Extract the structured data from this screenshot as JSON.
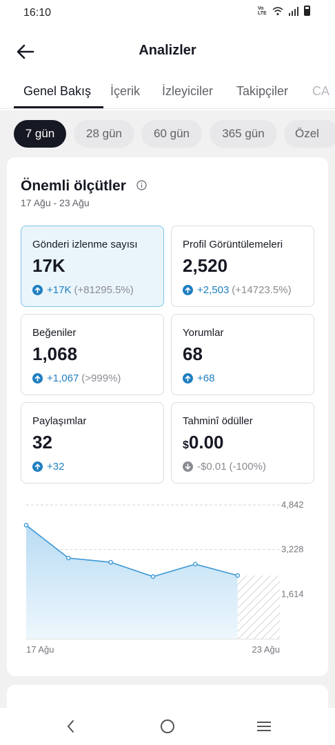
{
  "status": {
    "time": "16:10",
    "volte_label": "Vo LTE"
  },
  "header": {
    "title": "Analizler"
  },
  "tabs": [
    {
      "label": "Genel Bakış"
    },
    {
      "label": "İçerik"
    },
    {
      "label": "İzleyiciler"
    },
    {
      "label": "Takipçiler"
    },
    {
      "label": "CA"
    }
  ],
  "ranges": [
    {
      "label": "7 gün"
    },
    {
      "label": "28 gün"
    },
    {
      "label": "60 gün"
    },
    {
      "label": "365 gün"
    },
    {
      "label": "Özel"
    }
  ],
  "metrics_section": {
    "title": "Önemli ölçütler",
    "date_range": "17 Ağu - 23 Ağu",
    "metrics": [
      {
        "label": "Gönderi izlenme sayısı",
        "value": "17K",
        "change": "+17K",
        "change_pct": "(+81295.5%)"
      },
      {
        "label": "Profil Görüntülemeleri",
        "value": "2,520",
        "change": "+2,503",
        "change_pct": "(+14723.5%)"
      },
      {
        "label": "Beğeniler",
        "value": "1,068",
        "change": "+1,067",
        "change_pct": "(>999%)"
      },
      {
        "label": "Yorumlar",
        "value": "68",
        "change": "+68",
        "change_pct": ""
      },
      {
        "label": "Paylaşımlar",
        "value": "32",
        "change": "+32",
        "change_pct": ""
      },
      {
        "label": "Tahminî ödüller",
        "currency": "$",
        "value": "0.00",
        "change": "-$0.01",
        "change_pct": "(-100%)"
      }
    ]
  },
  "colors": {
    "accent": "#1f7ec1",
    "line": "#3a97d4",
    "area": "#cfe7f7",
    "neutral": "#8a8b91"
  },
  "chart_data": {
    "type": "line",
    "x": [
      "17 Ağu",
      "18 Ağu",
      "19 Ağu",
      "20 Ağu",
      "21 Ağu",
      "22 Ağu",
      "23 Ağu"
    ],
    "series": [
      {
        "values": [
          4110,
          2920,
          2770,
          2250,
          2700,
          2290,
          null
        ]
      }
    ],
    "ylim": [
      0,
      4842
    ],
    "yticks": [
      "4,842",
      "3,228",
      "1,614"
    ],
    "ytick_values": [
      4842,
      3228,
      1614
    ],
    "xtick_labels": [
      "17 Ağu",
      "23 Ağu"
    ],
    "grid": true,
    "incomplete_last_period": true
  }
}
